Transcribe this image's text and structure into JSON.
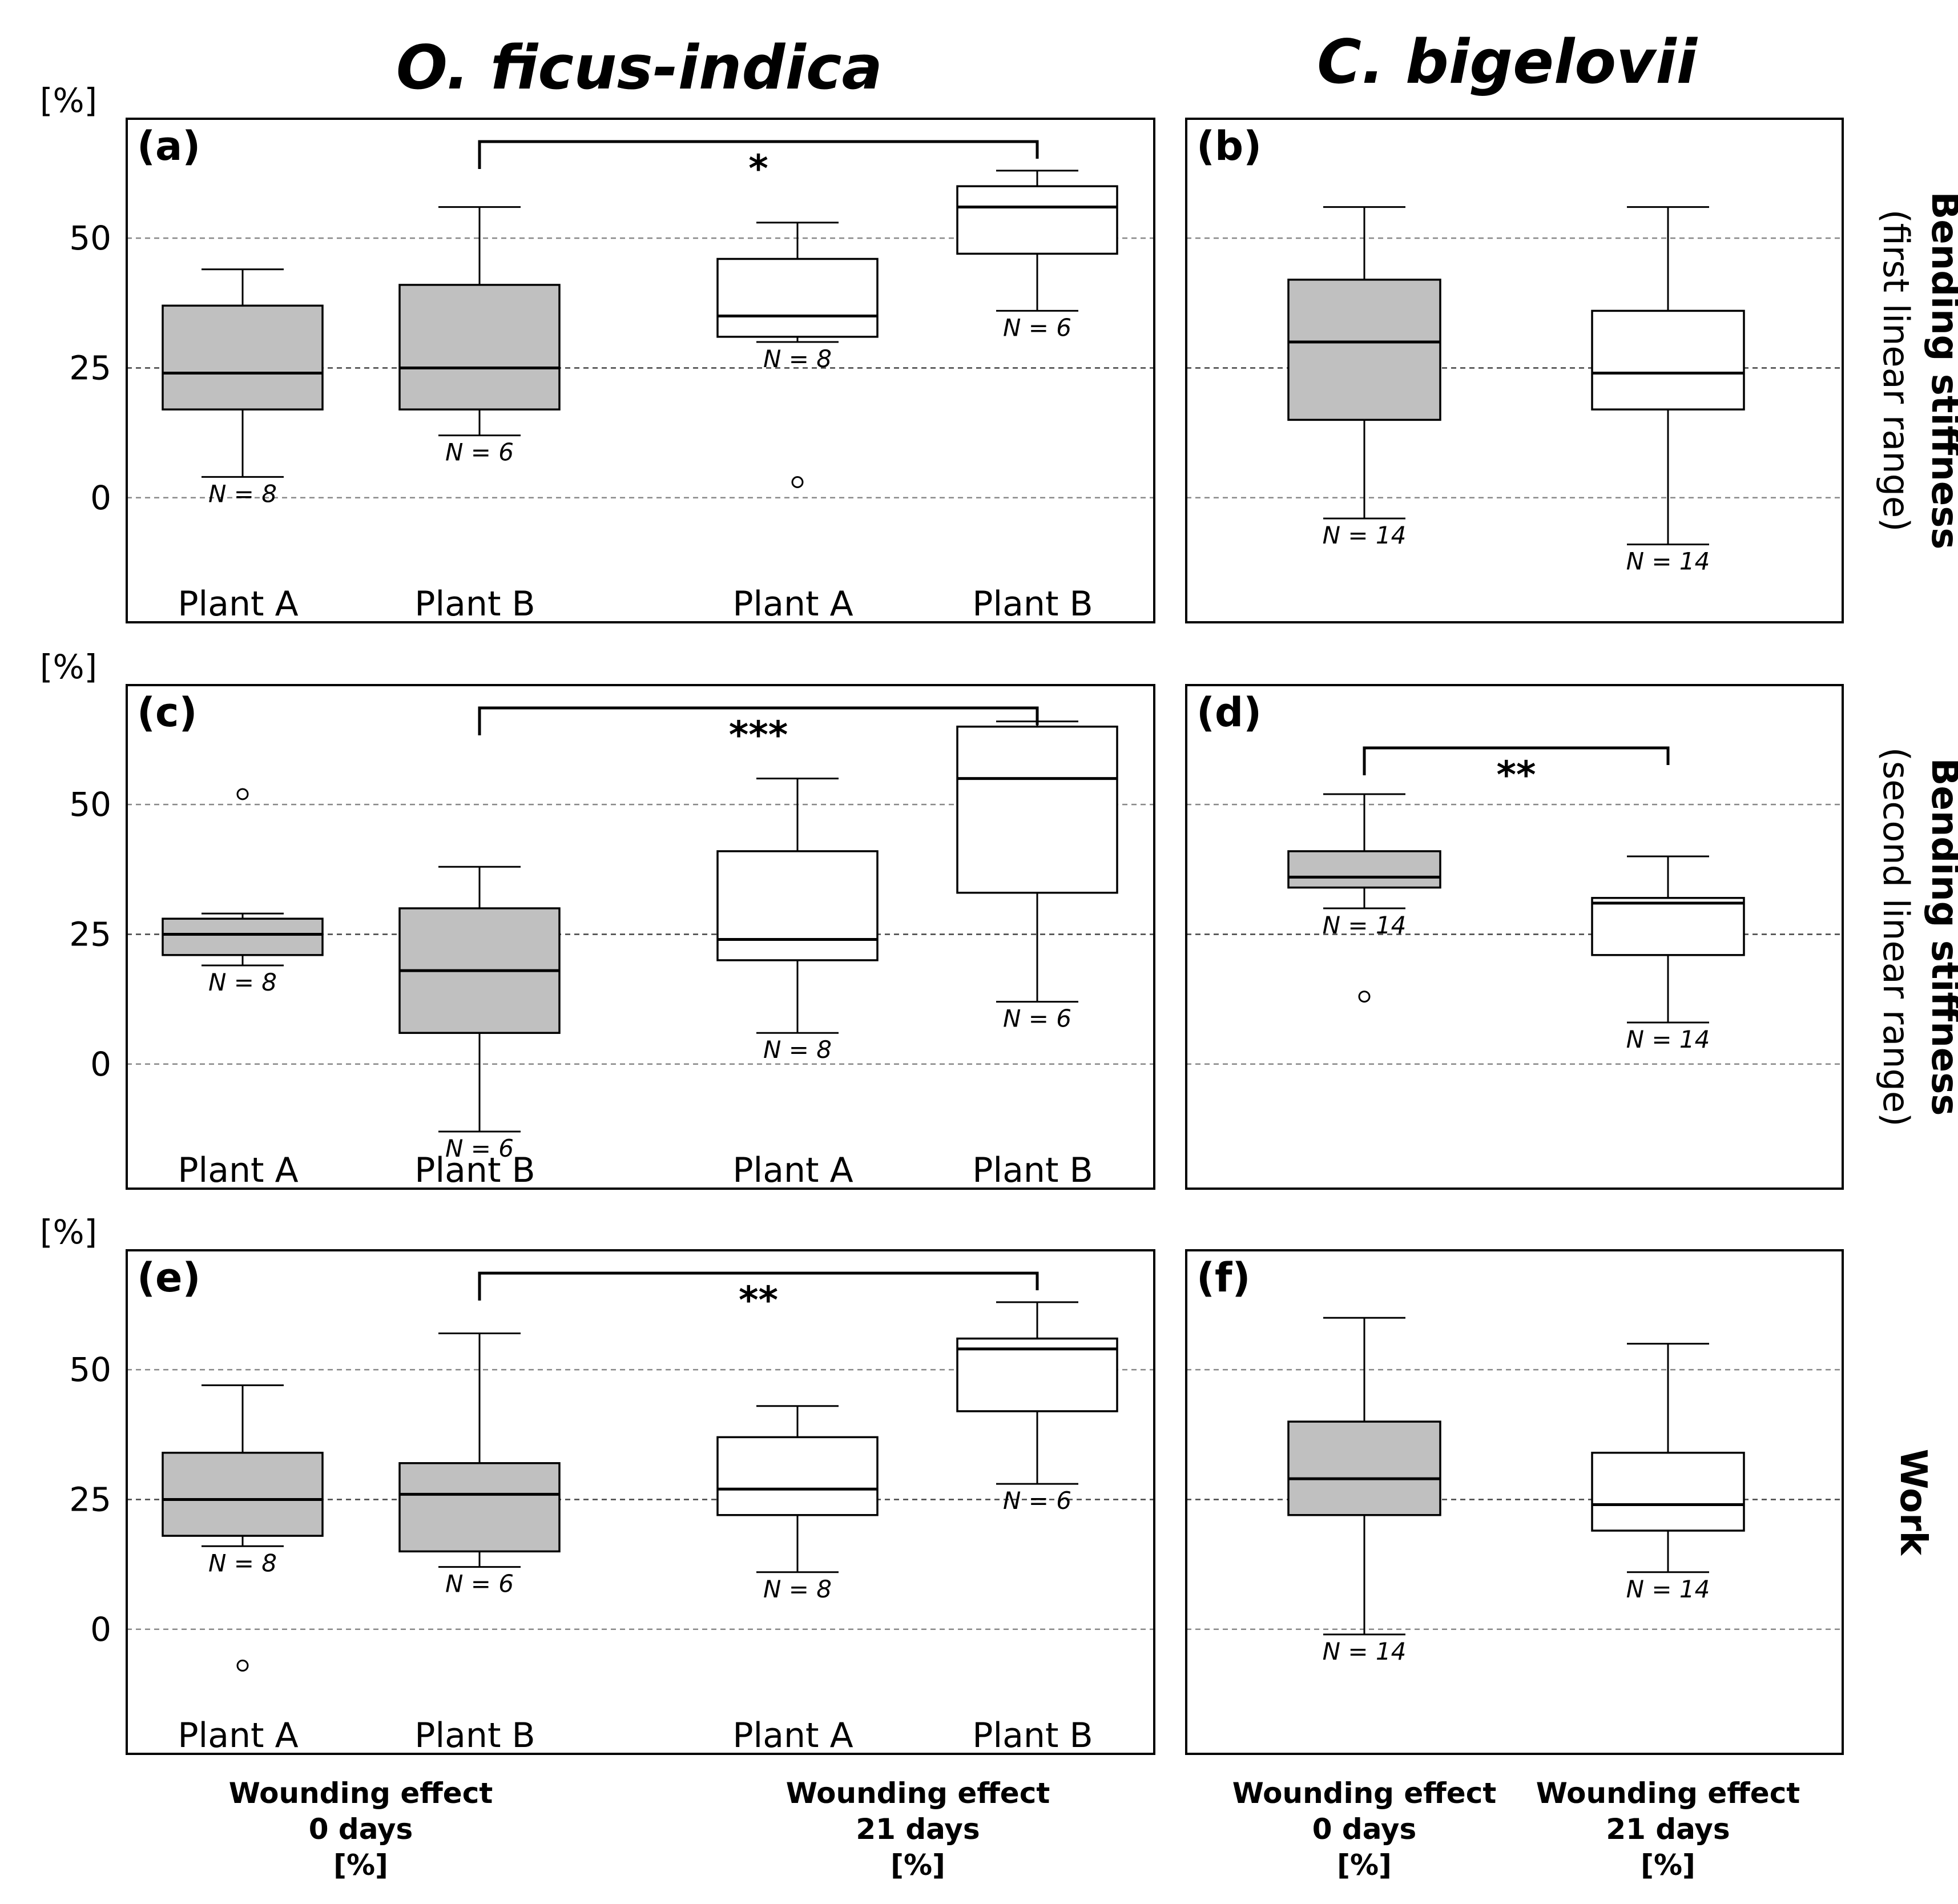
{
  "species": {
    "left": "O. ficus-indica",
    "right": "C. bigelovii"
  },
  "row_labels": [
    {
      "main": "Bending stiffness",
      "sub": "(first linear range)"
    },
    {
      "main": "Bending stiffness",
      "sub": "(second linear range)"
    },
    {
      "main": "Work",
      "sub": ""
    }
  ],
  "x_labels": {
    "ficus": [
      {
        "lines": [
          "Wounding effect",
          "0 days",
          "[%]"
        ]
      },
      {
        "lines": [
          "Wounding effect",
          "21 days",
          "[%]"
        ]
      }
    ],
    "bigelovii": [
      {
        "lines": [
          "Wounding effect",
          "0 days",
          "[%]"
        ]
      },
      {
        "lines": [
          "Wounding effect",
          "21 days",
          "[%]"
        ]
      }
    ]
  },
  "colors": {
    "filled": "#c0c0c0",
    "open": "#ffffff",
    "stroke": "#000000",
    "grid": "#888888"
  },
  "chart_data": [
    {
      "type": "box",
      "panel": "(a)",
      "y_unit": "[%]",
      "ylim": [
        -24,
        73
      ],
      "yticks": [
        0,
        25,
        50
      ],
      "categories": [
        "Plant A",
        "Plant B",
        "Plant A",
        "Plant B"
      ],
      "boxes": [
        {
          "label": "Plant A",
          "fill": "filled",
          "low": 4,
          "q1": 17,
          "median": 24,
          "q3": 37,
          "high": 44,
          "outliers": [],
          "n": "N = 8"
        },
        {
          "label": "Plant B",
          "fill": "filled",
          "low": 12,
          "q1": 17,
          "median": 25,
          "q3": 41,
          "high": 56,
          "outliers": [],
          "n": "N = 6"
        },
        {
          "label": "Plant A",
          "fill": "open",
          "low": 30,
          "q1": 31,
          "median": 35,
          "q3": 46,
          "high": 53,
          "outliers": [
            3
          ],
          "n": "N = 8"
        },
        {
          "label": "Plant B",
          "fill": "open",
          "low": 36,
          "q1": 47,
          "median": 56,
          "q3": 60,
          "high": 63,
          "outliers": [],
          "n": "N = 6"
        }
      ],
      "significance": [
        {
          "from": 1,
          "to": 3,
          "label": "*"
        }
      ]
    },
    {
      "type": "box",
      "panel": "(b)",
      "ylim": [
        -24,
        73
      ],
      "yticks": [
        0,
        25,
        50
      ],
      "categories": [
        "",
        ""
      ],
      "boxes": [
        {
          "label": "",
          "fill": "filled",
          "low": -4,
          "q1": 15,
          "median": 30,
          "q3": 42,
          "high": 56,
          "outliers": [],
          "n": "N = 14"
        },
        {
          "label": "",
          "fill": "open",
          "low": -9,
          "q1": 17,
          "median": 24,
          "q3": 36,
          "high": 56,
          "outliers": [],
          "n": "N = 14"
        }
      ],
      "significance": []
    },
    {
      "type": "box",
      "panel": "(c)",
      "y_unit": "[%]",
      "ylim": [
        -24,
        73
      ],
      "yticks": [
        0,
        25,
        50
      ],
      "categories": [
        "Plant A",
        "Plant B",
        "Plant A",
        "Plant B"
      ],
      "boxes": [
        {
          "label": "Plant A",
          "fill": "filled",
          "low": 19,
          "q1": 21,
          "median": 25,
          "q3": 28,
          "high": 29,
          "outliers": [
            52
          ],
          "n": "N = 8"
        },
        {
          "label": "Plant B",
          "fill": "filled",
          "low": -13,
          "q1": 6,
          "median": 18,
          "q3": 30,
          "high": 38,
          "outliers": [],
          "n": "N = 6"
        },
        {
          "label": "Plant A",
          "fill": "open",
          "low": 6,
          "q1": 20,
          "median": 24,
          "q3": 41,
          "high": 55,
          "outliers": [],
          "n": "N = 8"
        },
        {
          "label": "Plant B",
          "fill": "open",
          "low": 12,
          "q1": 33,
          "median": 55,
          "q3": 65,
          "high": 66,
          "outliers": [],
          "n": "N = 6"
        }
      ],
      "significance": [
        {
          "from": 1,
          "to": 3,
          "label": "***"
        }
      ]
    },
    {
      "type": "box",
      "panel": "(d)",
      "ylim": [
        -24,
        73
      ],
      "yticks": [
        0,
        25,
        50
      ],
      "categories": [
        "",
        ""
      ],
      "boxes": [
        {
          "label": "",
          "fill": "filled",
          "low": 30,
          "q1": 34,
          "median": 36,
          "q3": 41,
          "high": 52,
          "outliers": [
            13
          ],
          "n": "N = 14"
        },
        {
          "label": "",
          "fill": "open",
          "low": 8,
          "q1": 21,
          "median": 31,
          "q3": 32,
          "high": 40,
          "outliers": [],
          "n": "N = 14"
        }
      ],
      "significance": [
        {
          "from": 0,
          "to": 1,
          "label": "**"
        }
      ]
    },
    {
      "type": "box",
      "panel": "(e)",
      "y_unit": "[%]",
      "ylim": [
        -24,
        73
      ],
      "yticks": [
        0,
        25,
        50
      ],
      "categories": [
        "Plant A",
        "Plant B",
        "Plant A",
        "Plant B"
      ],
      "boxes": [
        {
          "label": "Plant A",
          "fill": "filled",
          "low": 16,
          "q1": 18,
          "median": 25,
          "q3": 34,
          "high": 47,
          "outliers": [
            -7
          ],
          "n": "N = 8"
        },
        {
          "label": "Plant B",
          "fill": "filled",
          "low": 12,
          "q1": 15,
          "median": 26,
          "q3": 32,
          "high": 57,
          "outliers": [],
          "n": "N = 6"
        },
        {
          "label": "Plant A",
          "fill": "open",
          "low": 11,
          "q1": 22,
          "median": 27,
          "q3": 37,
          "high": 43,
          "outliers": [],
          "n": "N = 8"
        },
        {
          "label": "Plant B",
          "fill": "open",
          "low": 28,
          "q1": 42,
          "median": 54,
          "q3": 56,
          "high": 63,
          "outliers": [],
          "n": "N = 6"
        }
      ],
      "significance": [
        {
          "from": 1,
          "to": 3,
          "label": "**"
        }
      ]
    },
    {
      "type": "box",
      "panel": "(f)",
      "ylim": [
        -24,
        73
      ],
      "yticks": [
        0,
        25,
        50
      ],
      "categories": [
        "",
        ""
      ],
      "boxes": [
        {
          "label": "",
          "fill": "filled",
          "low": -1,
          "q1": 22,
          "median": 29,
          "q3": 40,
          "high": 60,
          "outliers": [],
          "n": "N = 14"
        },
        {
          "label": "",
          "fill": "open",
          "low": 11,
          "q1": 19,
          "median": 24,
          "q3": 34,
          "high": 55,
          "outliers": [],
          "n": "N = 14"
        }
      ],
      "significance": []
    }
  ]
}
